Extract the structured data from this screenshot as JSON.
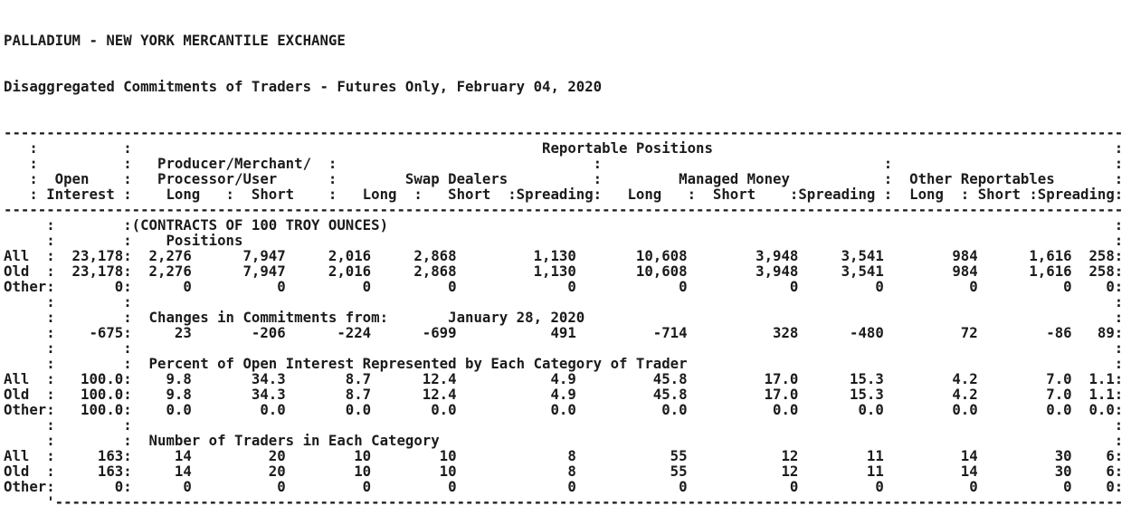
{
  "report": {
    "title": "PALLADIUM - NEW YORK MERCANTILE EXCHANGE",
    "subtitle": "Disaggregated Commitments of Traders - Futures Only, February 04, 2020",
    "contract_note": "(CONTRACTS OF 100 TROY OUNCES)",
    "header": {
      "reportable_label": "Reportable Positions",
      "open_interest_label": [
        "Open",
        "Interest"
      ],
      "sections": [
        {
          "title_top": "Producer/Merchant/",
          "title": "Processor/User",
          "columns": [
            "Long",
            "Short"
          ]
        },
        {
          "title": "Swap Dealers",
          "columns": [
            "Long",
            "Short",
            "Spreading"
          ]
        },
        {
          "title": "Managed Money",
          "columns": [
            "Long",
            "Short",
            "Spreading"
          ]
        },
        {
          "title": "Other Reportables",
          "columns": [
            "Long",
            "Short",
            "Spreading"
          ]
        }
      ]
    },
    "blocks": [
      {
        "heading": "Positions",
        "rows": [
          {
            "label": "All",
            "open_interest": "23,178",
            "values": [
              "2,276",
              "7,947",
              "2,016",
              "2,868",
              "1,130",
              "10,608",
              "3,948",
              "3,541",
              "984",
              "1,616",
              "258"
            ]
          },
          {
            "label": "Old",
            "open_interest": "23,178",
            "values": [
              "2,276",
              "7,947",
              "2,016",
              "2,868",
              "1,130",
              "10,608",
              "3,948",
              "3,541",
              "984",
              "1,616",
              "258"
            ]
          },
          {
            "label": "Other",
            "open_interest": "0",
            "values": [
              "0",
              "0",
              "0",
              "0",
              "0",
              "0",
              "0",
              "0",
              "0",
              "0",
              "0"
            ]
          }
        ]
      },
      {
        "heading": "Changes in Commitments from:",
        "heading_date": "January 28, 2020",
        "rows": [
          {
            "label": "",
            "open_interest": "-675",
            "values": [
              "23",
              "-206",
              "-224",
              "-699",
              "491",
              "-714",
              "328",
              "-480",
              "72",
              "-86",
              "89"
            ]
          }
        ]
      },
      {
        "heading": "Percent of Open Interest Represented by Each Category of Trader",
        "rows": [
          {
            "label": "All",
            "open_interest": "100.0",
            "values": [
              "9.8",
              "34.3",
              "8.7",
              "12.4",
              "4.9",
              "45.8",
              "17.0",
              "15.3",
              "4.2",
              "7.0",
              "1.1"
            ]
          },
          {
            "label": "Old",
            "open_interest": "100.0",
            "values": [
              "9.8",
              "34.3",
              "8.7",
              "12.4",
              "4.9",
              "45.8",
              "17.0",
              "15.3",
              "4.2",
              "7.0",
              "1.1"
            ]
          },
          {
            "label": "Other",
            "open_interest": "100.0",
            "values": [
              "0.0",
              "0.0",
              "0.0",
              "0.0",
              "0.0",
              "0.0",
              "0.0",
              "0.0",
              "0.0",
              "0.0",
              "0.0"
            ]
          }
        ]
      },
      {
        "heading": "Number of Traders in Each Category",
        "rows": [
          {
            "label": "All",
            "open_interest": "163",
            "values": [
              "14",
              "20",
              "10",
              "10",
              "8",
              "55",
              "12",
              "11",
              "14",
              "30",
              "6"
            ]
          },
          {
            "label": "Old",
            "open_interest": "163",
            "values": [
              "14",
              "20",
              "10",
              "10",
              "8",
              "55",
              "12",
              "11",
              "14",
              "30",
              "6"
            ]
          },
          {
            "label": "Other",
            "open_interest": "0",
            "values": [
              "0",
              "0",
              "0",
              "0",
              "0",
              "0",
              "0",
              "0",
              "0",
              "0",
              "0"
            ]
          }
        ]
      }
    ]
  }
}
